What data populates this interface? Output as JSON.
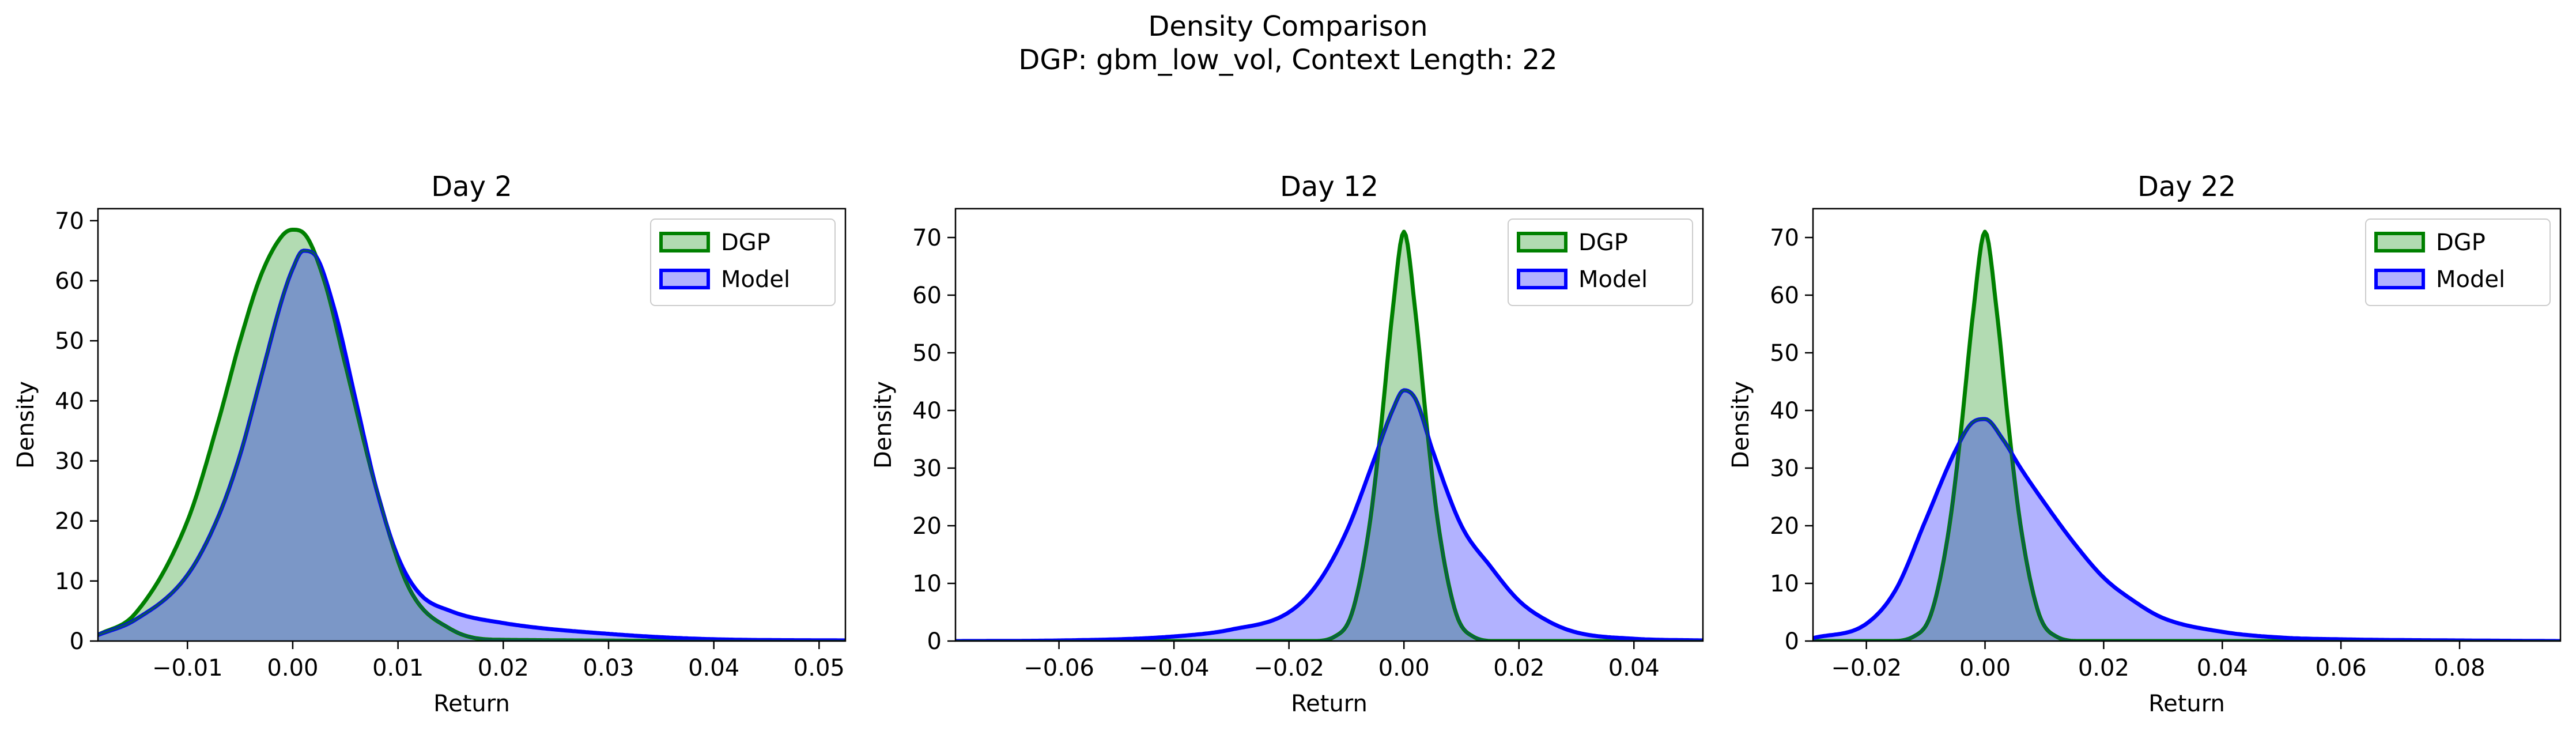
{
  "figure": {
    "title": "Density Comparison",
    "subtitle": "DGP: gbm_low_vol, Context Length: 22"
  },
  "colors": {
    "dgp_line": "#008000",
    "dgp_fill": "#b2dbb2",
    "model_line": "#0000ff",
    "model_fill": "#b2b2ff",
    "overlap_fill": "#7b97c7"
  },
  "chart_data": [
    {
      "type": "area",
      "title": "Day 2",
      "xlabel": "Return",
      "ylabel": "Density",
      "xlim": [
        -0.0185,
        0.0525
      ],
      "ylim": [
        0,
        72
      ],
      "xticks": [
        -0.01,
        0.0,
        0.01,
        0.02,
        0.03,
        0.04,
        0.05
      ],
      "xtick_labels": [
        "−0.01",
        "0.00",
        "0.01",
        "0.02",
        "0.03",
        "0.04",
        "0.05"
      ],
      "yticks": [
        0,
        10,
        20,
        30,
        40,
        50,
        60,
        70
      ],
      "ytick_labels": [
        "0",
        "10",
        "20",
        "30",
        "40",
        "50",
        "60",
        "70"
      ],
      "legend": "top-right",
      "series": [
        {
          "name": "DGP",
          "x": [
            -0.0185,
            -0.015,
            -0.01,
            -0.007,
            -0.005,
            -0.003,
            -0.001,
            0.0,
            0.001,
            0.003,
            0.005,
            0.008,
            0.011,
            0.015,
            0.02,
            0.0525
          ],
          "y": [
            1.0,
            4.5,
            20,
            37,
            50,
            61,
            67.5,
            68.5,
            68,
            60,
            46,
            25,
            9,
            2,
            0.2,
            0
          ]
        },
        {
          "name": "Model",
          "x": [
            -0.0185,
            -0.015,
            -0.01,
            -0.007,
            -0.005,
            -0.003,
            -0.001,
            0.0,
            0.001,
            0.002,
            0.004,
            0.006,
            0.008,
            0.01,
            0.012,
            0.015,
            0.02,
            0.03,
            0.04,
            0.0525
          ],
          "y": [
            1.0,
            3.5,
            11,
            21,
            31,
            44,
            57,
            62,
            65,
            64.5,
            55,
            40,
            25,
            14,
            8,
            5,
            3,
            1.2,
            0.3,
            0.1
          ]
        }
      ]
    },
    {
      "type": "area",
      "title": "Day 12",
      "xlabel": "Return",
      "ylabel": "Density",
      "xlim": [
        -0.078,
        0.052
      ],
      "ylim": [
        0,
        75
      ],
      "xticks": [
        -0.06,
        -0.04,
        -0.02,
        0.0,
        0.02,
        0.04
      ],
      "xtick_labels": [
        "−0.06",
        "−0.04",
        "−0.02",
        "0.00",
        "0.02",
        "0.04"
      ],
      "yticks": [
        0,
        10,
        20,
        30,
        40,
        50,
        60,
        70
      ],
      "ytick_labels": [
        "0",
        "10",
        "20",
        "30",
        "40",
        "50",
        "60",
        "70"
      ],
      "legend": "top-right",
      "series": [
        {
          "name": "DGP",
          "x": [
            -0.078,
            -0.016,
            -0.012,
            -0.009,
            -0.006,
            -0.004,
            -0.002,
            0.0,
            0.002,
            0.004,
            0.006,
            0.009,
            0.012,
            0.016,
            0.052
          ],
          "y": [
            0,
            0,
            0.8,
            5,
            20,
            37,
            57,
            71,
            57,
            37,
            20,
            5,
            0.8,
            0,
            0
          ]
        },
        {
          "name": "Model",
          "x": [
            -0.078,
            -0.06,
            -0.04,
            -0.03,
            -0.02,
            -0.015,
            -0.01,
            -0.005,
            -0.002,
            0.0,
            0.002,
            0.005,
            0.01,
            0.015,
            0.02,
            0.025,
            0.03,
            0.04,
            0.052
          ],
          "y": [
            0,
            0.1,
            0.8,
            2,
            5,
            10,
            19,
            32,
            40,
            43.5,
            42,
            33,
            20,
            13,
            7,
            3.5,
            1.5,
            0.4,
            0.1
          ]
        }
      ]
    },
    {
      "type": "area",
      "title": "Day 22",
      "xlabel": "Return",
      "ylabel": "Density",
      "xlim": [
        -0.029,
        0.097
      ],
      "ylim": [
        0,
        75
      ],
      "xticks": [
        -0.02,
        0.0,
        0.02,
        0.04,
        0.06,
        0.08
      ],
      "xtick_labels": [
        "−0.02",
        "0.00",
        "0.02",
        "0.04",
        "0.06",
        "0.08"
      ],
      "yticks": [
        0,
        10,
        20,
        30,
        40,
        50,
        60,
        70
      ],
      "ytick_labels": [
        "0",
        "10",
        "20",
        "30",
        "40",
        "50",
        "60",
        "70"
      ],
      "legend": "top-right",
      "series": [
        {
          "name": "DGP",
          "x": [
            -0.029,
            -0.016,
            -0.012,
            -0.009,
            -0.006,
            -0.004,
            -0.002,
            0.0,
            0.002,
            0.004,
            0.006,
            0.009,
            0.012,
            0.016,
            0.097
          ],
          "y": [
            0,
            0,
            0.8,
            5,
            20,
            37,
            57,
            71,
            57,
            37,
            20,
            5,
            0.8,
            0,
            0
          ]
        },
        {
          "name": "Model",
          "x": [
            -0.029,
            -0.02,
            -0.015,
            -0.01,
            -0.005,
            -0.002,
            0.0,
            0.003,
            0.006,
            0.01,
            0.015,
            0.02,
            0.025,
            0.03,
            0.04,
            0.05,
            0.06,
            0.08,
            0.097
          ],
          "y": [
            0.5,
            3,
            9,
            21,
            33,
            38,
            38.5,
            35,
            30,
            24,
            17,
            11,
            7,
            4,
            1.6,
            0.6,
            0.3,
            0.1,
            0
          ]
        }
      ]
    }
  ]
}
